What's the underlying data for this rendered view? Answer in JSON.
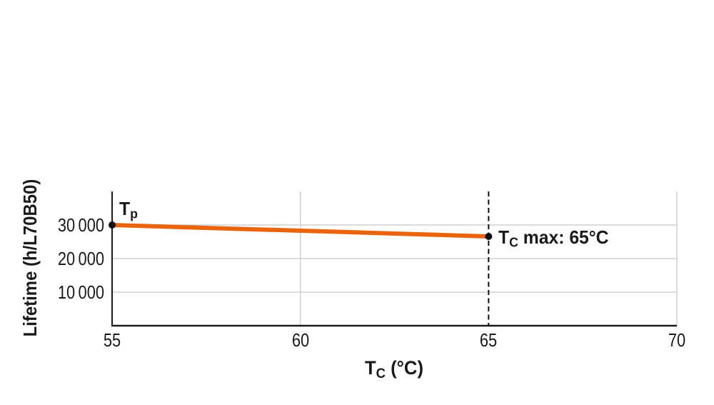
{
  "chart_data": {
    "type": "line",
    "title": "",
    "xlabel": "Tc (°C)",
    "ylabel": "Lifetime (h/L70B50)",
    "xlim": [
      55,
      70
    ],
    "ylim": [
      0,
      40000
    ],
    "xticks": [
      55,
      60,
      65,
      70
    ],
    "yticks": [
      10000,
      20000,
      30000
    ],
    "x_gridlines": [
      60,
      70
    ],
    "grid": true,
    "legend": false,
    "series": [
      {
        "name": "lifetime-vs-case-temperature",
        "color": "#e8650e",
        "points": [
          {
            "x": 55,
            "y": 30000,
            "label": "Tp"
          },
          {
            "x": 65,
            "y": 26600,
            "label": "Tc max: 65°C"
          }
        ]
      }
    ],
    "reference_lines": [
      {
        "axis": "x",
        "value": 65,
        "style": "dashed",
        "label": "Tc max: 65°C"
      }
    ]
  },
  "y_axis": {
    "title": "Lifetime (h/L70B50)",
    "tick_labels": [
      "30 000",
      "20 000",
      "10 000"
    ]
  },
  "x_axis": {
    "title": {
      "base": "T",
      "sub": "C",
      "unit": " (°C)"
    },
    "tick_labels": [
      "55",
      "60",
      "65",
      "70"
    ]
  },
  "annotations": {
    "start_point": {
      "base": "T",
      "sub": "p"
    },
    "max_point": {
      "base": "T",
      "sub": "C",
      "rest": " max: 65°C"
    }
  },
  "colors": {
    "line": "#e8650e",
    "grid": "#c6c6c6",
    "axis": "#1a1a1a",
    "reference": "#111111",
    "marker": "#111111",
    "text": "#1a1a1a",
    "background": "#ffffff"
  }
}
